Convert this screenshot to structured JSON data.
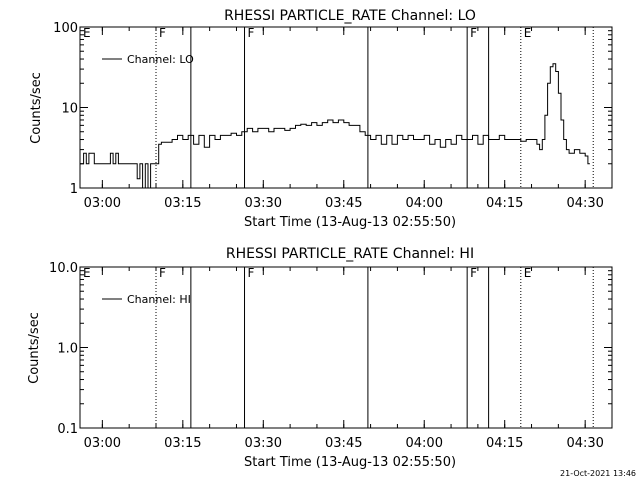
{
  "footer": {
    "timestamp": "21-Oct-2021 13:46"
  },
  "chart_data": [
    {
      "type": "line",
      "title": "RHESSI PARTICLE_RATE Channel: LO",
      "xlabel": "Start Time (13-Aug-13 02:55:50)",
      "ylabel": "Counts/sec",
      "yscale": "log",
      "ylim": [
        1,
        100
      ],
      "xlim": [
        "02:55:50",
        "04:35:00"
      ],
      "x_ticks": [
        "03:00",
        "03:15",
        "03:30",
        "03:45",
        "04:00",
        "04:15",
        "04:30"
      ],
      "y_ticks": [
        "1",
        "10",
        "100"
      ],
      "grid": false,
      "legend": {
        "position": "top-left",
        "entries": [
          "Channel: LO"
        ]
      },
      "markers": [
        {
          "time": "02:55:50",
          "label": "E",
          "style": "none"
        },
        {
          "time": "03:10:00",
          "label": "F",
          "style": "dotted"
        },
        {
          "time": "03:16:30",
          "label": "",
          "style": "solid"
        },
        {
          "time": "03:26:30",
          "label": "F",
          "style": "solid"
        },
        {
          "time": "03:49:30",
          "label": "",
          "style": "solid"
        },
        {
          "time": "04:08:00",
          "label": "F",
          "style": "solid"
        },
        {
          "time": "04:12:00",
          "label": "",
          "style": "solid"
        },
        {
          "time": "04:18:00",
          "label": "E",
          "style": "dotted"
        },
        {
          "time": "04:31:30",
          "label": "",
          "style": "dotted"
        }
      ],
      "series": [
        {
          "name": "Channel: LO",
          "x": [
            "02:55:50",
            "02:56:30",
            "02:57:00",
            "02:57:30",
            "02:58:30",
            "02:59:30",
            "03:00:30",
            "03:01:30",
            "03:02:00",
            "03:02:30",
            "03:03:00",
            "03:04:00",
            "03:05:00",
            "03:06:00",
            "03:06:30",
            "03:07:00",
            "03:07:30",
            "03:08:00",
            "03:08:30",
            "03:09:00",
            "03:10:00",
            "03:10:30",
            "03:11:00",
            "03:12:00",
            "03:13:00",
            "03:14:00",
            "03:15:00",
            "03:16:00",
            "03:17:00",
            "03:18:00",
            "03:19:00",
            "03:20:00",
            "03:21:00",
            "03:22:00",
            "03:23:00",
            "03:24:00",
            "03:25:00",
            "03:26:00",
            "03:27:00",
            "03:28:00",
            "03:29:00",
            "03:30:00",
            "03:31:00",
            "03:32:00",
            "03:33:00",
            "03:34:00",
            "03:35:00",
            "03:36:00",
            "03:37:00",
            "03:38:00",
            "03:39:00",
            "03:40:00",
            "03:41:00",
            "03:42:00",
            "03:43:00",
            "03:44:00",
            "03:45:00",
            "03:46:00",
            "03:47:00",
            "03:48:00",
            "03:49:00",
            "03:50:00",
            "03:51:00",
            "03:52:00",
            "03:53:00",
            "03:54:00",
            "03:55:00",
            "03:56:00",
            "03:57:00",
            "03:58:00",
            "03:59:00",
            "04:00:00",
            "04:01:00",
            "04:02:00",
            "04:03:00",
            "04:04:00",
            "04:05:00",
            "04:06:00",
            "04:07:00",
            "04:08:00",
            "04:09:00",
            "04:10:00",
            "04:11:00",
            "04:12:00",
            "04:13:00",
            "04:14:00",
            "04:15:00",
            "04:16:00",
            "04:17:00",
            "04:18:00",
            "04:19:00",
            "04:20:00",
            "04:20:30",
            "04:21:00",
            "04:21:30",
            "04:22:00",
            "04:22:30",
            "04:23:00",
            "04:23:30",
            "04:24:00",
            "04:24:30",
            "04:25:00",
            "04:25:30",
            "04:26:00",
            "04:26:30",
            "04:27:00",
            "04:28:00",
            "04:29:00",
            "04:30:00",
            "04:30:30"
          ],
          "y": [
            2.0,
            2.7,
            2.0,
            2.7,
            2.0,
            2.0,
            2.0,
            2.7,
            2.0,
            2.7,
            2.0,
            2.0,
            2.0,
            2.0,
            1.3,
            2.0,
            1.0,
            2.0,
            1.0,
            2.0,
            2.0,
            3.5,
            3.7,
            3.7,
            4.0,
            4.5,
            4.0,
            4.5,
            3.5,
            4.5,
            3.2,
            4.5,
            4.0,
            4.5,
            4.5,
            4.8,
            4.5,
            5.0,
            5.5,
            5.0,
            5.5,
            5.5,
            5.0,
            5.5,
            5.5,
            5.2,
            5.5,
            6.0,
            6.2,
            6.0,
            6.5,
            6.0,
            6.5,
            7.0,
            6.5,
            7.0,
            6.5,
            6.0,
            6.0,
            5.0,
            4.5,
            4.0,
            4.5,
            3.5,
            4.5,
            3.5,
            4.5,
            4.0,
            4.5,
            4.0,
            4.0,
            4.5,
            3.5,
            4.0,
            3.2,
            4.0,
            3.5,
            4.5,
            4.0,
            4.0,
            4.5,
            3.5,
            4.5,
            4.0,
            4.0,
            4.5,
            4.0,
            4.0,
            4.0,
            3.8,
            4.0,
            4.0,
            4.0,
            3.5,
            3.0,
            4.0,
            8.0,
            20.0,
            32.0,
            35.0,
            28.0,
            15.0,
            7.0,
            4.0,
            3.0,
            2.7,
            3.0,
            2.7,
            2.5,
            2.0
          ]
        }
      ]
    },
    {
      "type": "line",
      "title": "RHESSI PARTICLE_RATE Channel: HI",
      "xlabel": "Start Time (13-Aug-13 02:55:50)",
      "ylabel": "Counts/sec",
      "yscale": "log",
      "ylim": [
        0.1,
        10
      ],
      "xlim": [
        "02:55:50",
        "04:35:00"
      ],
      "x_ticks": [
        "03:00",
        "03:15",
        "03:30",
        "03:45",
        "04:00",
        "04:15",
        "04:30"
      ],
      "y_ticks": [
        "0.1",
        "1.0",
        "10.0"
      ],
      "grid": false,
      "legend": {
        "position": "top-left",
        "entries": [
          "Channel: HI"
        ]
      },
      "markers": [
        {
          "time": "02:55:50",
          "label": "E",
          "style": "none"
        },
        {
          "time": "03:10:00",
          "label": "F",
          "style": "dotted"
        },
        {
          "time": "03:16:30",
          "label": "",
          "style": "solid"
        },
        {
          "time": "03:26:30",
          "label": "F",
          "style": "solid"
        },
        {
          "time": "03:49:30",
          "label": "",
          "style": "solid"
        },
        {
          "time": "04:08:00",
          "label": "F",
          "style": "solid"
        },
        {
          "time": "04:12:00",
          "label": "",
          "style": "solid"
        },
        {
          "time": "04:18:00",
          "label": "E",
          "style": "dotted"
        },
        {
          "time": "04:31:30",
          "label": "",
          "style": "dotted"
        }
      ],
      "series": [
        {
          "name": "Channel: HI",
          "x": [],
          "y": []
        }
      ]
    }
  ]
}
